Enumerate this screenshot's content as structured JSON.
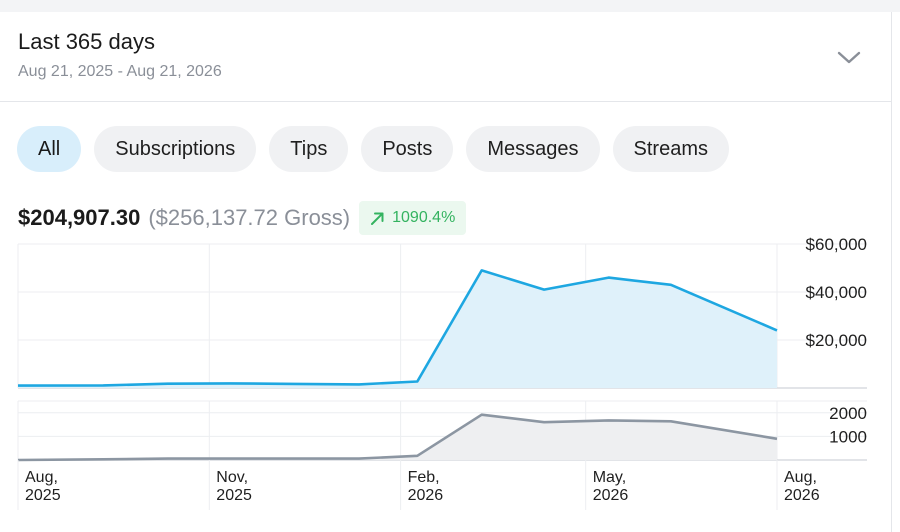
{
  "period": {
    "title": "Last 365 days",
    "range": "Aug 21, 2025 - Aug 21, 2026",
    "toggle_icon": "chevron-down-icon"
  },
  "tabs": [
    {
      "label": "All",
      "active": true
    },
    {
      "label": "Subscriptions",
      "active": false
    },
    {
      "label": "Tips",
      "active": false
    },
    {
      "label": "Posts",
      "active": false
    },
    {
      "label": "Messages",
      "active": false
    },
    {
      "label": "Streams",
      "active": false
    }
  ],
  "summary": {
    "net": "$204,907.30",
    "gross": "($256,137.72 Gross)",
    "change": "1090.4%",
    "change_icon": "trend-up-arrow-icon"
  },
  "colors": {
    "accent": "#1ea7e1",
    "accent_fill": "#dff1fa",
    "secondary_line": "#8c96a2",
    "secondary_fill": "#eeeff1",
    "positive": "#34b360"
  },
  "chart_data": [
    {
      "type": "area",
      "x": [
        "2025-08-21",
        "2025-10-01",
        "2025-11-01",
        "2025-12-01",
        "2026-01-01",
        "2026-02-01",
        "2026-03-01",
        "2026-04-01",
        "2026-05-01",
        "2026-06-01",
        "2026-07-01",
        "2026-08-21"
      ],
      "values": [
        1000,
        1100,
        1800,
        1900,
        1700,
        1500,
        2700,
        49000,
        41000,
        46000,
        43000,
        24000
      ],
      "ylim": [
        0,
        60000
      ],
      "yticks": [
        "$60,000",
        "$40,000",
        "$20,000"
      ],
      "ytick_values": [
        60000,
        40000,
        20000
      ],
      "grid": true
    },
    {
      "type": "area",
      "x": [
        "2025-08-21",
        "2025-10-01",
        "2025-11-01",
        "2025-12-01",
        "2026-01-01",
        "2026-02-01",
        "2026-03-01",
        "2026-04-01",
        "2026-05-01",
        "2026-06-01",
        "2026-07-01",
        "2026-08-21"
      ],
      "values": [
        0,
        30,
        60,
        60,
        60,
        60,
        180,
        1920,
        1600,
        1680,
        1640,
        900
      ],
      "ylim": [
        0,
        2500
      ],
      "yticks": [
        "2000",
        "1000"
      ],
      "ytick_values": [
        2000,
        1000
      ],
      "grid": true
    }
  ],
  "x_axis": {
    "ticks": [
      {
        "month": "Aug,",
        "year": "2025"
      },
      {
        "month": "Nov,",
        "year": "2025"
      },
      {
        "month": "Feb,",
        "year": "2026"
      },
      {
        "month": "May,",
        "year": "2026"
      },
      {
        "month": "Aug,",
        "year": "2026"
      }
    ]
  }
}
